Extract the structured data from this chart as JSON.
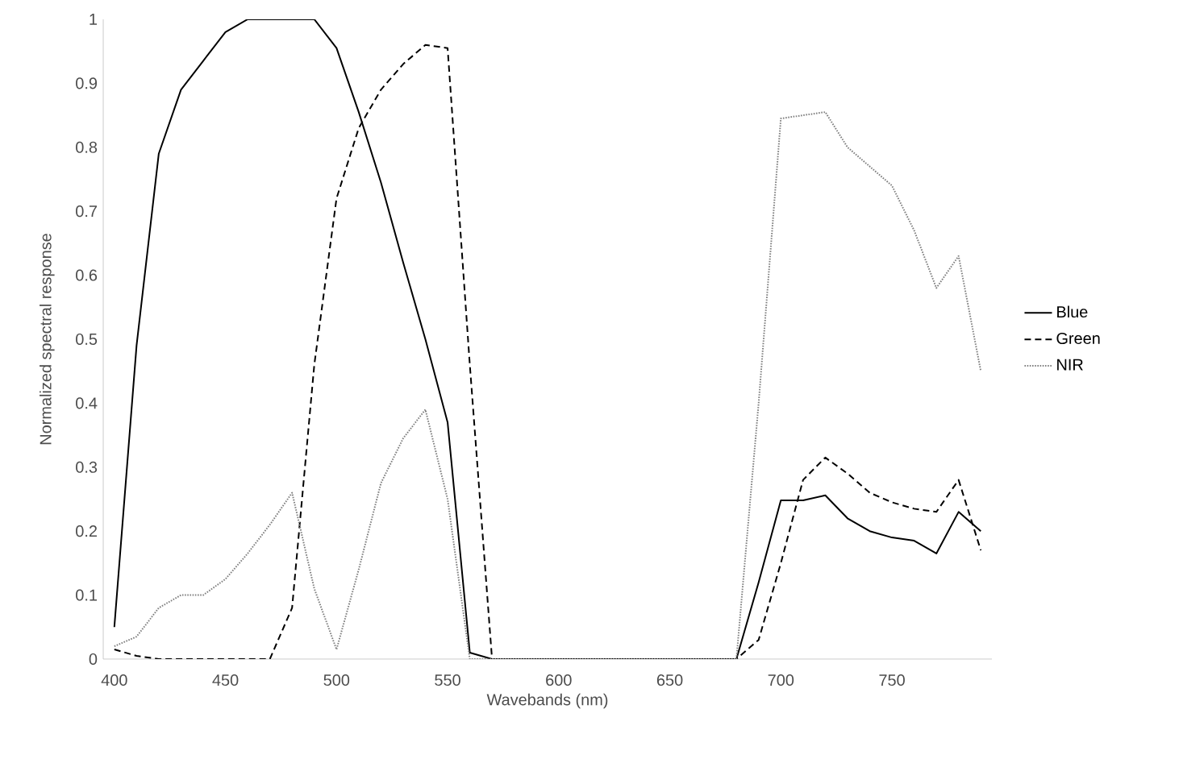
{
  "chart_data": {
    "type": "line",
    "xlabel": "Wavebands (nm)",
    "ylabel": "Normalized spectral response",
    "x": [
      400,
      410,
      420,
      430,
      440,
      450,
      460,
      470,
      480,
      490,
      500,
      510,
      520,
      530,
      540,
      550,
      560,
      570,
      580,
      590,
      600,
      610,
      620,
      630,
      640,
      650,
      660,
      670,
      680,
      690,
      700,
      710,
      720,
      730,
      740,
      750,
      760,
      770,
      780,
      790
    ],
    "series": [
      {
        "name": "Blue",
        "color": "#000000",
        "line_style": "solid",
        "values": [
          0.05,
          0.49,
          0.79,
          0.89,
          0.935,
          0.98,
          1.0,
          1.0,
          1.0,
          1.0,
          0.955,
          0.855,
          0.745,
          0.62,
          0.5,
          0.37,
          0.01,
          0,
          0,
          0,
          0,
          0,
          0,
          0,
          0,
          0,
          0,
          0,
          0,
          0.12,
          0.248,
          0.248,
          0.256,
          0.22,
          0.2,
          0.19,
          0.185,
          0.165,
          0.23,
          0.2
        ]
      },
      {
        "name": "Green",
        "color": "#000000",
        "line_style": "dashed",
        "values": [
          0.015,
          0.005,
          0,
          0,
          0,
          0,
          0,
          0,
          0.08,
          0.46,
          0.72,
          0.83,
          0.89,
          0.93,
          0.96,
          0.955,
          0.46,
          0,
          0,
          0,
          0,
          0,
          0,
          0,
          0,
          0,
          0,
          0,
          0,
          0.03,
          0.15,
          0.28,
          0.315,
          0.29,
          0.26,
          0.245,
          0.235,
          0.23,
          0.28,
          0.17
        ]
      },
      {
        "name": "NIR",
        "color": "#808080",
        "line_style": "dotted",
        "values": [
          0.02,
          0.035,
          0.08,
          0.1,
          0.1,
          0.125,
          0.165,
          0.21,
          0.26,
          0.11,
          0.015,
          0.14,
          0.275,
          0.345,
          0.39,
          0.25,
          0,
          0,
          0,
          0,
          0,
          0,
          0,
          0,
          0,
          0,
          0,
          0,
          0,
          0.4,
          0.845,
          0.85,
          0.855,
          0.8,
          0.77,
          0.74,
          0.67,
          0.58,
          0.63,
          0.45
        ]
      }
    ],
    "xlim": [
      395,
      795
    ],
    "xticks": [
      400,
      450,
      500,
      550,
      600,
      650,
      700,
      750
    ],
    "ylim": [
      0,
      1
    ],
    "yticks": [
      0,
      0.1,
      0.2,
      0.3,
      0.4,
      0.5,
      0.6,
      0.7,
      0.8,
      0.9,
      1
    ],
    "legend": "right"
  }
}
